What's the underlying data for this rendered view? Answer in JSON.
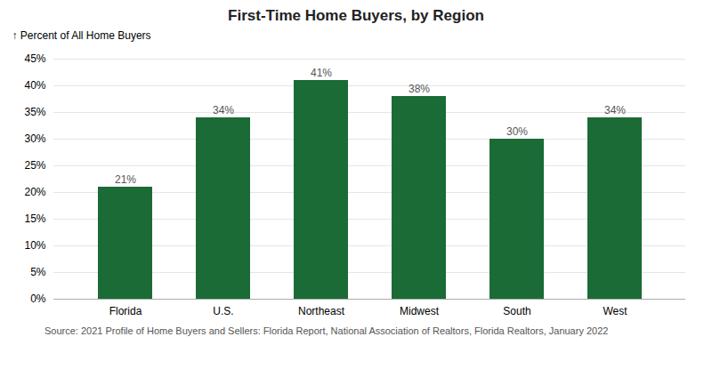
{
  "chart_data": {
    "type": "bar",
    "title": "First-Time Home Buyers, by Region",
    "ylabel": "Percent of All Home Buyers",
    "caption": "Source: 2021 Profile of Home Buyers and Sellers: Florida Report, National Association of Realtors, Florida Realtors, January 2022",
    "categories": [
      "Florida",
      "U.S.",
      "Northeast",
      "Midwest",
      "South",
      "West"
    ],
    "values": [
      21,
      34,
      41,
      38,
      30,
      34
    ],
    "value_labels": [
      "21%",
      "34%",
      "41%",
      "38%",
      "30%",
      "34%"
    ],
    "data_labels": true,
    "color": "#1a6b35",
    "ylim": [
      0,
      45
    ],
    "yticks": [
      {
        "value": 0,
        "label": "0%"
      },
      {
        "value": 5,
        "label": "5%"
      },
      {
        "value": 10,
        "label": "10%"
      },
      {
        "value": 15,
        "label": "15%"
      },
      {
        "value": 20,
        "label": "20%"
      },
      {
        "value": 25,
        "label": "25%"
      },
      {
        "value": 30,
        "label": "30%"
      },
      {
        "value": 35,
        "label": "35%"
      },
      {
        "value": 40,
        "label": "40%"
      },
      {
        "value": 45,
        "label": "45%"
      }
    ],
    "grid": true
  }
}
